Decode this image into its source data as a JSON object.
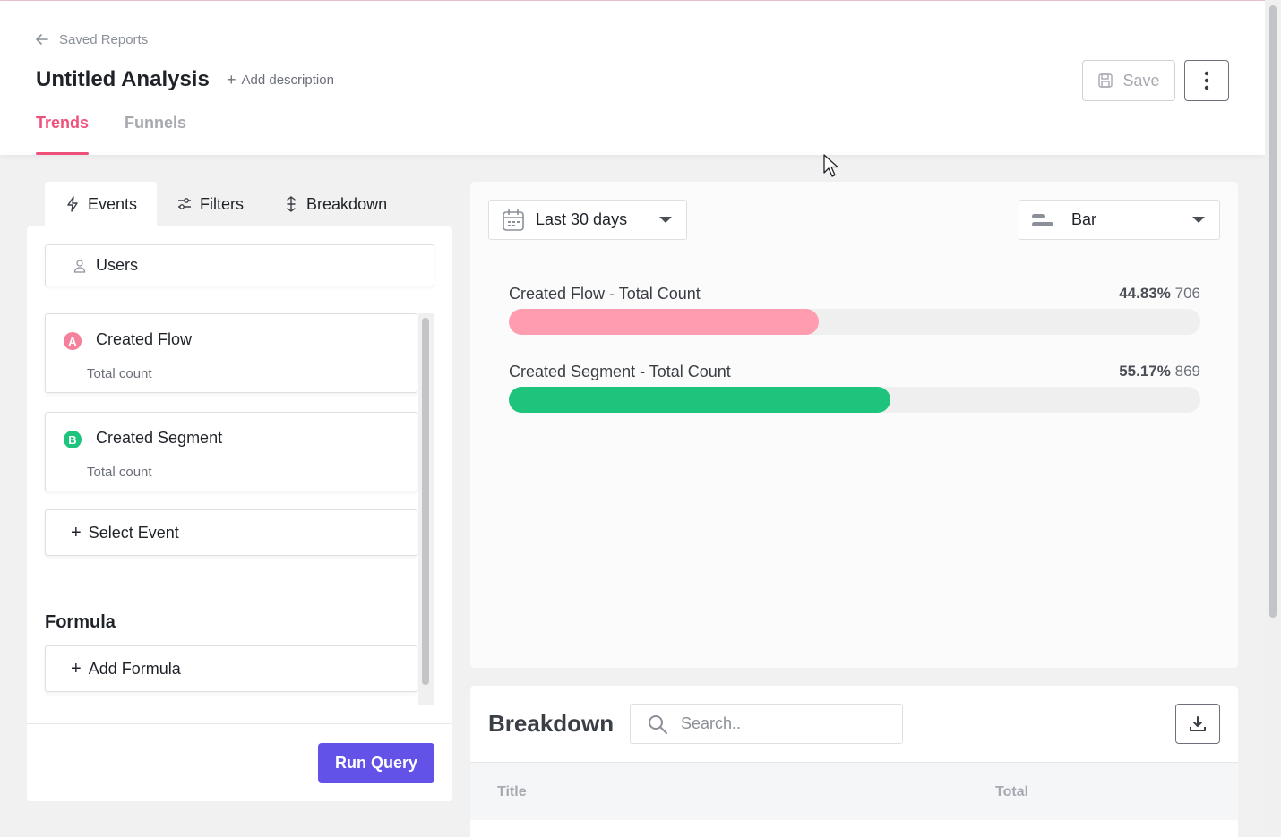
{
  "header": {
    "back_label": "Saved Reports",
    "title": "Untitled Analysis",
    "add_description": "Add description",
    "save_label": "Save",
    "tabs": [
      {
        "label": "Trends",
        "active": true
      },
      {
        "label": "Funnels",
        "active": false
      }
    ]
  },
  "query_panel": {
    "tabs": [
      {
        "label": "Events",
        "icon": "lightning-icon",
        "active": true
      },
      {
        "label": "Filters",
        "icon": "sliders-icon",
        "active": false
      },
      {
        "label": "Breakdown",
        "icon": "split-arrows-icon",
        "active": false
      }
    ],
    "audience": "Users",
    "events": [
      {
        "badge": "A",
        "name": "Created Flow",
        "metric": "Total count",
        "color": "#f5809b"
      },
      {
        "badge": "B",
        "name": "Created Segment",
        "metric": "Total count",
        "color": "#1ec47c"
      }
    ],
    "select_event_label": "Select Event",
    "formula_title": "Formula",
    "add_formula_label": "Add Formula",
    "run_query_label": "Run Query"
  },
  "chart_controls": {
    "date_range": "Last 30 days",
    "chart_type": "Bar"
  },
  "chart_data": {
    "type": "bar",
    "orientation": "horizontal",
    "series": [
      {
        "name": "Created Flow - Total Count",
        "percent_label": "44.83%",
        "value": 706,
        "color": "#ff9cb0"
      },
      {
        "name": "Created Segment - Total Count",
        "percent_label": "55.17%",
        "value": 869,
        "color": "#1ec47c"
      }
    ]
  },
  "breakdown": {
    "title": "Breakdown",
    "search_placeholder": "Search..",
    "columns": [
      "Title",
      "Total"
    ]
  },
  "colors": {
    "accent": "#f0517a",
    "primary_button": "#6252e8"
  }
}
